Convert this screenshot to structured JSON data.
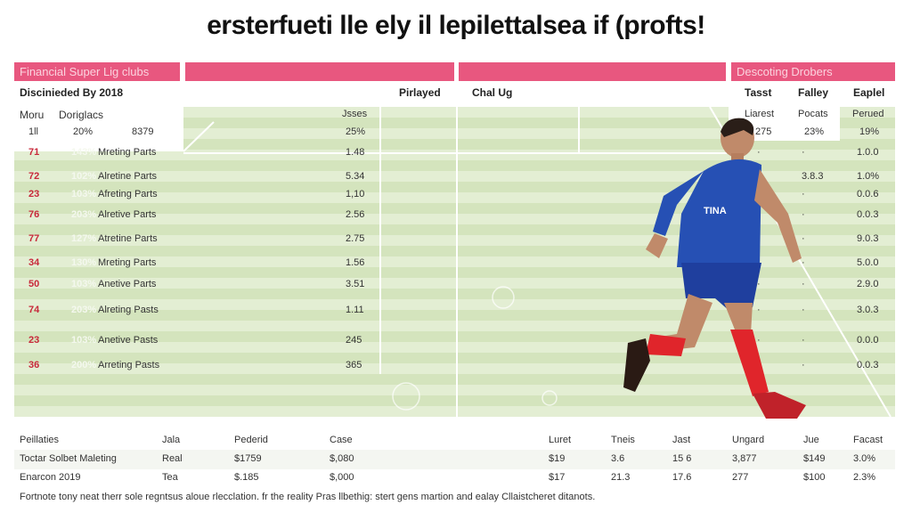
{
  "title": "ersterfueti lle ely il lepilettalsea if (profts!",
  "colors": {
    "accent": "#e8577f",
    "field": "#d4e4bd",
    "number": "#c8283a"
  },
  "left": {
    "banner": "Financial Super Lig clubs",
    "subtitle": "Discinieded By 2018",
    "col_played": "Pirlayed",
    "col_a": "Moru",
    "col_b": "Doriglacs",
    "col_issues": "Jsses",
    "summary": {
      "a": "1ll",
      "b": "20%",
      "c": "8379",
      "d": "25%"
    },
    "rows": [
      {
        "num": "71",
        "pct": "143%",
        "label": "Mreting Parts",
        "val": "1.48"
      },
      {
        "num": "72",
        "pct": "102%",
        "label": "Alretine Parts",
        "val": "5.34"
      },
      {
        "num": "23",
        "pct": "103%",
        "label": "Afreting Parts",
        "val": "1,10"
      },
      {
        "num": "76",
        "pct": "203%",
        "label": "Alretive Parts",
        "val": "2.56"
      },
      {
        "num": "77",
        "pct": "127%",
        "label": "Atretine Parts",
        "val": "2.75"
      },
      {
        "num": "34",
        "pct": "130%",
        "label": "Mreting Parts",
        "val": "1.56"
      },
      {
        "num": "50",
        "pct": "103%",
        "label": "Anetive Parts",
        "val": "3.51"
      },
      {
        "num": "74",
        "pct": "203%",
        "label": "Alreting Pasts",
        "val": "1.11"
      },
      {
        "num": "23",
        "pct": "103%",
        "label": "Anetive Pasts",
        "val": "245"
      },
      {
        "num": "36",
        "pct": "200%",
        "label": "Arreting Pasts",
        "val": "365"
      }
    ]
  },
  "middle": {
    "header": "Chal Ug"
  },
  "right": {
    "banner": "Descoting Drobers",
    "cols": [
      "Tasst",
      "Falley",
      "Eaplel"
    ],
    "subcols": [
      "Liarest",
      "Pocats",
      "Perued"
    ],
    "summary": [
      "275",
      "23%",
      "19%"
    ],
    "rows": [
      {
        "a": "·",
        "b": "·",
        "c": "1.0.0"
      },
      {
        "a": "·",
        "b": "3.8.3",
        "c": "1.0%"
      },
      {
        "a": "·",
        "b": "·",
        "c": "0.0.6"
      },
      {
        "a": "·",
        "b": "·",
        "c": "0.0.3"
      },
      {
        "a": "·",
        "b": "·",
        "c": "9.0.3"
      },
      {
        "a": "·",
        "b": "·",
        "c": "5.0.0"
      },
      {
        "a": "·",
        "b": "·",
        "c": "2.9.0"
      },
      {
        "a": "·",
        "b": "·",
        "c": "3.0.3"
      },
      {
        "a": "·",
        "b": "·",
        "c": "0.0.0"
      },
      {
        "a": "·",
        "b": "·",
        "c": "0.0.3"
      }
    ]
  },
  "bottom": {
    "headers": [
      "Peillaties",
      "Jala",
      "Pederid",
      "Case",
      "Luret",
      "Tneis",
      "Jast",
      "Ungard",
      "Jue",
      "Facast"
    ],
    "rows": [
      [
        "Toctar Solbet Maleting",
        "Real",
        "$1759",
        "$,080",
        "$19",
        "3.6",
        "15 6",
        "3,877",
        "$149",
        "3.0%"
      ],
      [
        "Enarcon 2019",
        "Tea",
        "$.185",
        "$,000",
        "$17",
        "21.3",
        "17.6",
        "277",
        "$100",
        "2.3%"
      ]
    ],
    "footnote": "Fortnote tony neat therr sole regntsus aloue rlecclation. fr the reality Pras llbethig: stert gens martion and ealay Cllaistcheret ditanots."
  }
}
